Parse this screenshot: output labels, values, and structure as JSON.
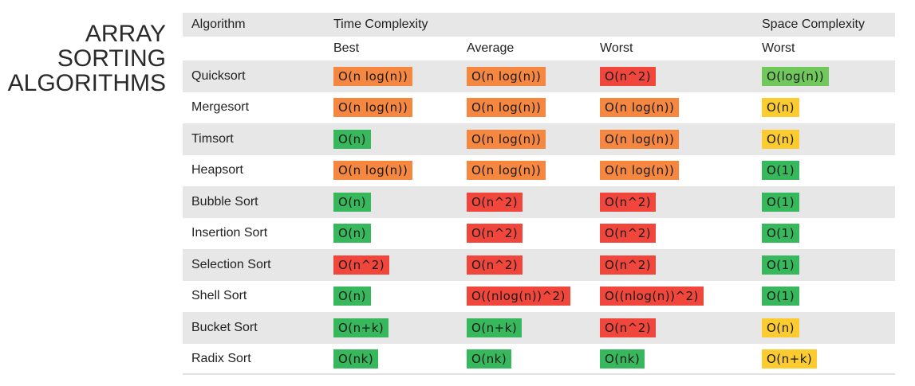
{
  "title": [
    "ARRAY",
    "SORTING",
    "ALGORITHMS"
  ],
  "colors": {
    "orange": "#f58741",
    "red": "#f0463c",
    "green": "#37b85c",
    "light-green": "#71c85b",
    "yellow": "#fbcb2f",
    "row-shade": "#e7e7e7"
  },
  "headers": {
    "algorithm": "Algorithm",
    "time": "Time Complexity",
    "space": "Space Complexity",
    "best": "Best",
    "average": "Average",
    "worst": "Worst",
    "space_worst": "Worst"
  },
  "rows": [
    {
      "name": "Quicksort",
      "best": {
        "text": "O(n log(n))",
        "color": "orange"
      },
      "avg": {
        "text": "O(n log(n))",
        "color": "orange"
      },
      "worst": {
        "text": "O(n^2)",
        "color": "red"
      },
      "space": {
        "text": "O(log(n))",
        "color": "light-green"
      }
    },
    {
      "name": "Mergesort",
      "best": {
        "text": "O(n log(n))",
        "color": "orange"
      },
      "avg": {
        "text": "O(n log(n))",
        "color": "orange"
      },
      "worst": {
        "text": "O(n log(n))",
        "color": "orange"
      },
      "space": {
        "text": "O(n)",
        "color": "yellow"
      }
    },
    {
      "name": "Timsort",
      "best": {
        "text": "O(n)",
        "color": "green"
      },
      "avg": {
        "text": "O(n log(n))",
        "color": "orange"
      },
      "worst": {
        "text": "O(n log(n))",
        "color": "orange"
      },
      "space": {
        "text": "O(n)",
        "color": "yellow"
      }
    },
    {
      "name": "Heapsort",
      "best": {
        "text": "O(n log(n))",
        "color": "orange"
      },
      "avg": {
        "text": "O(n log(n))",
        "color": "orange"
      },
      "worst": {
        "text": "O(n log(n))",
        "color": "orange"
      },
      "space": {
        "text": "O(1)",
        "color": "green"
      }
    },
    {
      "name": "Bubble Sort",
      "best": {
        "text": "O(n)",
        "color": "green"
      },
      "avg": {
        "text": "O(n^2)",
        "color": "red"
      },
      "worst": {
        "text": "O(n^2)",
        "color": "red"
      },
      "space": {
        "text": "O(1)",
        "color": "green"
      }
    },
    {
      "name": "Insertion Sort",
      "best": {
        "text": "O(n)",
        "color": "green"
      },
      "avg": {
        "text": "O(n^2)",
        "color": "red"
      },
      "worst": {
        "text": "O(n^2)",
        "color": "red"
      },
      "space": {
        "text": "O(1)",
        "color": "green"
      }
    },
    {
      "name": "Selection Sort",
      "best": {
        "text": "O(n^2)",
        "color": "red"
      },
      "avg": {
        "text": "O(n^2)",
        "color": "red"
      },
      "worst": {
        "text": "O(n^2)",
        "color": "red"
      },
      "space": {
        "text": "O(1)",
        "color": "green"
      }
    },
    {
      "name": "Shell Sort",
      "best": {
        "text": "O(n)",
        "color": "green"
      },
      "avg": {
        "text": "O((nlog(n))^2)",
        "color": "red"
      },
      "worst": {
        "text": "O((nlog(n))^2)",
        "color": "red"
      },
      "space": {
        "text": "O(1)",
        "color": "green"
      }
    },
    {
      "name": "Bucket Sort",
      "best": {
        "text": "O(n+k)",
        "color": "green"
      },
      "avg": {
        "text": "O(n+k)",
        "color": "green"
      },
      "worst": {
        "text": "O(n^2)",
        "color": "red"
      },
      "space": {
        "text": "O(n)",
        "color": "yellow"
      }
    },
    {
      "name": "Radix Sort",
      "best": {
        "text": "O(nk)",
        "color": "green"
      },
      "avg": {
        "text": "O(nk)",
        "color": "green"
      },
      "worst": {
        "text": "O(nk)",
        "color": "green"
      },
      "space": {
        "text": "O(n+k)",
        "color": "yellow"
      }
    }
  ]
}
